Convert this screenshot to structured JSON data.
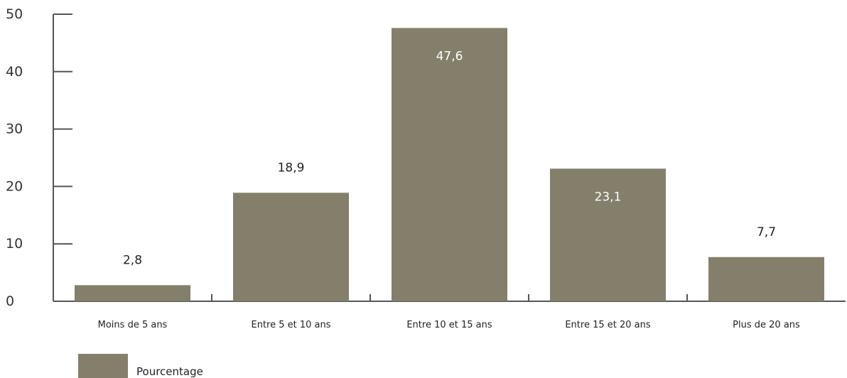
{
  "chart_data": {
    "type": "bar",
    "categories": [
      "Moins de 5 ans",
      "Entre 5 et 10 ans",
      "Entre 10 et 15 ans",
      "Entre 15 et 20 ans",
      "Plus de 20 ans"
    ],
    "series": [
      {
        "name": "Pourcentage",
        "values": [
          2.8,
          18.9,
          47.6,
          23.1,
          7.7
        ]
      }
    ],
    "value_labels": [
      "2,8",
      "18,9",
      "47,6",
      "23,1",
      "7,7"
    ],
    "ylim": [
      0,
      50
    ],
    "yticks": [
      0,
      10,
      20,
      30,
      40,
      50
    ],
    "ytick_labels": [
      "0",
      "10",
      "20",
      "30",
      "40",
      "50"
    ],
    "title": "",
    "xlabel": "",
    "ylabel": "",
    "grid": false,
    "legend": "bottom-left",
    "colors": {
      "bar": "#837f6a",
      "axis": "#555555",
      "label_dark": "#222222",
      "label_light": "#ffffff"
    }
  }
}
